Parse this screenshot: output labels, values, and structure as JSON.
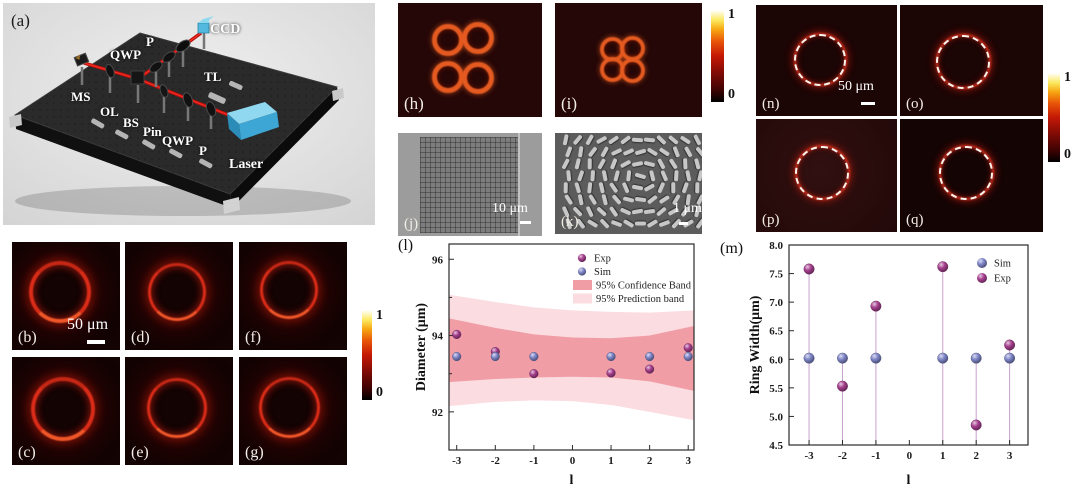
{
  "figure": {
    "panel_labels": {
      "a": "(a)",
      "b": "(b)",
      "c": "(c)",
      "d": "(d)",
      "e": "(e)",
      "f": "(f)",
      "g": "(g)",
      "h": "(h)",
      "i": "(i)",
      "j": "(j)",
      "k": "(k)",
      "l": "(l)",
      "m": "(m)",
      "n": "(n)",
      "o": "(o)",
      "p": "(p)",
      "q": "(q)"
    },
    "colorbar": {
      "max": "1",
      "min": "0"
    },
    "scalebars": {
      "b": "50 μm",
      "j": "10 μm",
      "k": "1 μm",
      "n": "50 μm"
    }
  },
  "setup": {
    "components": [
      {
        "label": "CCD"
      },
      {
        "label": "P"
      },
      {
        "label": "QWP"
      },
      {
        "label": "TL"
      },
      {
        "label": "MS"
      },
      {
        "label": "OL"
      },
      {
        "label": "BS"
      },
      {
        "label": "Pin"
      },
      {
        "label": "QWP"
      },
      {
        "label": "P"
      },
      {
        "label": "Laser"
      }
    ]
  },
  "chart_data": [
    {
      "type": "scatter",
      "panel": "l",
      "xlabel": "l",
      "ylabel": "Diameter (μm)",
      "xlim": [
        -3.2,
        3.15
      ],
      "ylim": [
        91.0,
        96.4
      ],
      "xticks": [
        -3,
        -2,
        -1,
        0,
        1,
        2,
        3
      ],
      "yticks_major": [
        92,
        94,
        96
      ],
      "yticks_minor": [
        93,
        95
      ],
      "x": [
        -3,
        -2,
        -1,
        1,
        2,
        3
      ],
      "series": [
        {
          "name": "Exp",
          "color": "#a7408f",
          "values": [
            94.03,
            93.58,
            93.0,
            93.02,
            93.12,
            93.68
          ]
        },
        {
          "name": "Sim",
          "color": "#7f86c8",
          "values": [
            93.45,
            93.45,
            93.45,
            93.45,
            93.45,
            93.45
          ]
        }
      ],
      "bands": [
        {
          "name": "95% Confidence Band",
          "color": "#f09da6",
          "x": [
            -3.2,
            -2,
            -1,
            0,
            1,
            2,
            3.15
          ],
          "top": [
            94.45,
            94.2,
            94.03,
            93.95,
            93.93,
            94.0,
            94.25
          ],
          "bottom": [
            92.78,
            92.86,
            92.9,
            92.92,
            92.9,
            92.8,
            92.55
          ]
        },
        {
          "name": "95% Prediction band",
          "color": "#fbdce1",
          "x": [
            -3.2,
            -2,
            -1,
            0,
            1,
            2,
            3.15
          ],
          "top": [
            95.07,
            94.88,
            94.74,
            94.66,
            94.62,
            94.6,
            94.66
          ],
          "bottom": [
            92.15,
            92.26,
            92.3,
            92.28,
            92.18,
            92.0,
            91.78
          ]
        }
      ],
      "legend_position": "top-right",
      "grid": false
    },
    {
      "type": "scatter",
      "panel": "m",
      "xlabel": "l",
      "ylabel": "Ring Width(μm)",
      "xlim": [
        -3.6,
        3.55
      ],
      "ylim": [
        4.5,
        8.0
      ],
      "xticks": [
        -3,
        -2,
        -1,
        0,
        1,
        2,
        3
      ],
      "yticks_major": [
        4.5,
        5.0,
        5.5,
        6.0,
        6.5,
        7.0,
        7.5,
        8.0
      ],
      "ytick_format": "1f",
      "x": [
        -3,
        -2,
        -1,
        1,
        2,
        3
      ],
      "series": [
        {
          "name": "Sim",
          "color": "#7f86c8",
          "values": [
            6.02,
            6.02,
            6.02,
            6.02,
            6.02,
            6.02
          ]
        },
        {
          "name": "Exp",
          "color": "#a7408f",
          "values": [
            7.58,
            5.53,
            6.93,
            7.62,
            4.85,
            6.25
          ]
        }
      ],
      "stems": true,
      "stem_color": "#c9a2cf",
      "legend_position": "top-right",
      "grid": false
    }
  ]
}
